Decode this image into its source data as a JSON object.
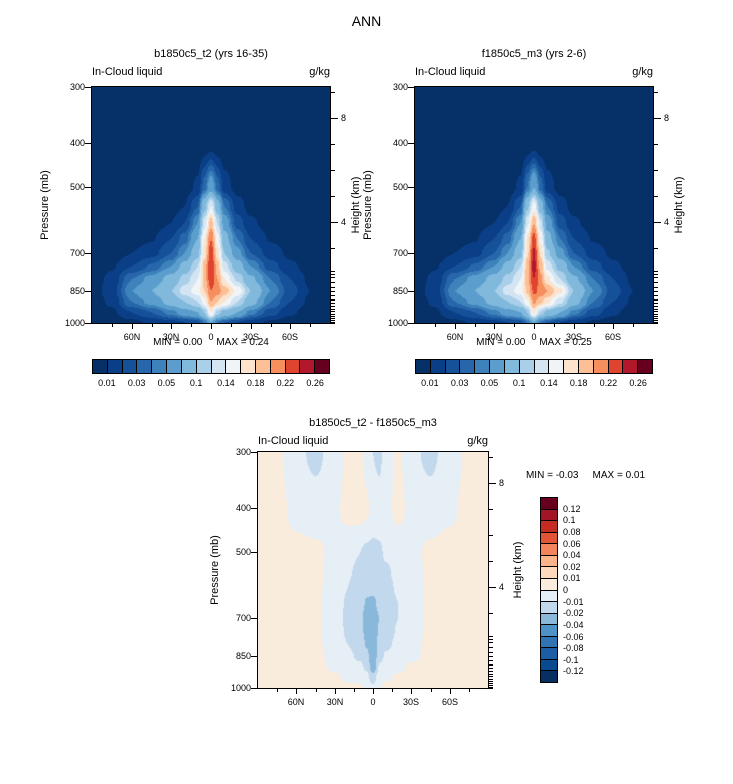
{
  "figure": {
    "title": "ANN",
    "season": "ANN"
  },
  "axes": {
    "pressure_label": "Pressure (mb)",
    "height_label": "Height (km)",
    "pressure_ticks": [
      300,
      400,
      500,
      700,
      850,
      1000
    ],
    "height_major_ticks": [
      {
        "km": "8",
        "mb": 351
      },
      {
        "km": "4",
        "mb": 597
      }
    ],
    "height_minor_ticks_mb": [
      888,
      778,
      681,
      523,
      458,
      401,
      307
    ],
    "model_level_ticks_mb": [
      1000,
      993,
      985,
      976,
      966,
      955,
      943,
      930,
      916,
      901,
      885,
      868,
      850,
      831,
      811,
      790,
      768
    ],
    "lat_major_ticks": [
      {
        "label": "60N",
        "lat": 60
      },
      {
        "label": "30N",
        "lat": 30
      },
      {
        "label": "0",
        "lat": 0
      },
      {
        "label": "30S",
        "lat": -30
      },
      {
        "label": "60S",
        "lat": -60
      }
    ],
    "lat_minor_ticks": [
      75,
      45,
      15,
      -15,
      -45,
      -75
    ]
  },
  "chart_data": [
    {
      "type": "filled-contour",
      "title": "b1850c5_t2 (yrs 16-35)",
      "field": "In-Cloud liquid",
      "units": "g/kg",
      "min_label": "MIN =  0.00",
      "max_label": "MAX =  0.24",
      "x_lat": [
        90,
        75,
        60,
        45,
        30,
        20,
        10,
        5,
        0,
        -5,
        -10,
        -20,
        -30,
        -45,
        -60,
        -75,
        -90
      ],
      "y_pressure_mb": [
        300,
        400,
        500,
        550,
        600,
        650,
        700,
        750,
        800,
        850,
        900,
        950,
        1000
      ],
      "values": [
        [
          0,
          0,
          0,
          0,
          0,
          0,
          0,
          0,
          0,
          0,
          0,
          0,
          0,
          0,
          0,
          0,
          0
        ],
        [
          0,
          0,
          0,
          0,
          0,
          0,
          0.002,
          0.004,
          0.006,
          0.004,
          0.002,
          0,
          0,
          0,
          0,
          0,
          0
        ],
        [
          0,
          0,
          0,
          0.002,
          0.003,
          0.005,
          0.012,
          0.035,
          0.06,
          0.035,
          0.015,
          0.006,
          0.003,
          0.002,
          0,
          0,
          0
        ],
        [
          0,
          0,
          0.002,
          0.003,
          0.005,
          0.01,
          0.03,
          0.09,
          0.14,
          0.08,
          0.04,
          0.015,
          0.006,
          0.003,
          0.002,
          0,
          0
        ],
        [
          0,
          0.002,
          0.003,
          0.005,
          0.01,
          0.02,
          0.05,
          0.13,
          0.19,
          0.12,
          0.06,
          0.025,
          0.012,
          0.005,
          0.003,
          0.002,
          0
        ],
        [
          0.002,
          0.003,
          0.005,
          0.009,
          0.02,
          0.035,
          0.07,
          0.16,
          0.22,
          0.15,
          0.08,
          0.04,
          0.02,
          0.009,
          0.005,
          0.003,
          0.002
        ],
        [
          0.003,
          0.005,
          0.01,
          0.016,
          0.03,
          0.05,
          0.09,
          0.17,
          0.235,
          0.17,
          0.1,
          0.055,
          0.03,
          0.015,
          0.008,
          0.004,
          0.002
        ],
        [
          0.004,
          0.009,
          0.02,
          0.032,
          0.05,
          0.08,
          0.12,
          0.19,
          0.24,
          0.19,
          0.13,
          0.085,
          0.05,
          0.025,
          0.012,
          0.006,
          0.003
        ],
        [
          0.005,
          0.013,
          0.04,
          0.055,
          0.08,
          0.11,
          0.14,
          0.19,
          0.235,
          0.2,
          0.16,
          0.115,
          0.075,
          0.04,
          0.02,
          0.008,
          0.004
        ],
        [
          0.006,
          0.015,
          0.05,
          0.07,
          0.1,
          0.13,
          0.15,
          0.18,
          0.22,
          0.21,
          0.19,
          0.155,
          0.1,
          0.05,
          0.025,
          0.01,
          0.005
        ],
        [
          0.005,
          0.012,
          0.04,
          0.055,
          0.08,
          0.1,
          0.12,
          0.15,
          0.2,
          0.18,
          0.16,
          0.12,
          0.08,
          0.04,
          0.02,
          0.008,
          0.004
        ],
        [
          0.003,
          0.008,
          0.02,
          0.03,
          0.045,
          0.06,
          0.07,
          0.1,
          0.16,
          0.11,
          0.09,
          0.07,
          0.045,
          0.025,
          0.012,
          0.005,
          0.002
        ],
        [
          0.002,
          0.004,
          0.007,
          0.012,
          0.016,
          0.02,
          0.025,
          0.04,
          0.07,
          0.04,
          0.03,
          0.02,
          0.014,
          0.008,
          0.004,
          0.002,
          0.001
        ]
      ],
      "levels": [
        0.01,
        0.02,
        0.03,
        0.04,
        0.05,
        0.07,
        0.1,
        0.12,
        0.14,
        0.16,
        0.18,
        0.2,
        0.22,
        0.24,
        0.26
      ],
      "colors": [
        "#063168",
        "#0a3f88",
        "#155199",
        "#2766aa",
        "#3d82bb",
        "#5b9ecd",
        "#81b9dc",
        "#aacfe9",
        "#d3e4f2",
        "#f0f4f6",
        "#fbe3cd",
        "#fcbf96",
        "#f78e5e",
        "#e04430",
        "#b2182b",
        "#67001f"
      ],
      "colorbar": {
        "orientation": "horizontal",
        "labels": [
          "0.01",
          "0.03",
          "0.05",
          "0.1",
          "0.14",
          "0.18",
          "0.22",
          "0.26"
        ],
        "boundaries": [
          1,
          3,
          5,
          7,
          9,
          11,
          13,
          15
        ]
      }
    },
    {
      "type": "filled-contour",
      "title": "f1850c5_m3 (yrs 2-6)",
      "field": "In-Cloud liquid",
      "units": "g/kg",
      "min_label": "MIN =  0.00",
      "max_label": "MAX =  0.25",
      "x_lat": [
        90,
        75,
        60,
        45,
        30,
        20,
        10,
        5,
        0,
        -5,
        -10,
        -20,
        -30,
        -45,
        -60,
        -75,
        -90
      ],
      "y_pressure_mb": [
        300,
        400,
        500,
        550,
        600,
        650,
        700,
        750,
        800,
        850,
        900,
        950,
        1000
      ],
      "values": [
        [
          0,
          0,
          0,
          0,
          0,
          0,
          0,
          0,
          0,
          0,
          0,
          0,
          0,
          0,
          0,
          0,
          0
        ],
        [
          0,
          0,
          0,
          0,
          0,
          0,
          0.002,
          0.004,
          0.006,
          0.004,
          0.002,
          0,
          0,
          0,
          0,
          0,
          0
        ],
        [
          0,
          0,
          0,
          0.002,
          0.003,
          0.005,
          0.012,
          0.04,
          0.07,
          0.035,
          0.015,
          0.006,
          0.003,
          0.002,
          0,
          0,
          0
        ],
        [
          0,
          0,
          0.002,
          0.003,
          0.005,
          0.01,
          0.03,
          0.095,
          0.15,
          0.085,
          0.04,
          0.015,
          0.006,
          0.003,
          0.002,
          0,
          0
        ],
        [
          0,
          0.002,
          0.003,
          0.005,
          0.01,
          0.02,
          0.05,
          0.135,
          0.2,
          0.125,
          0.06,
          0.025,
          0.012,
          0.005,
          0.003,
          0.002,
          0
        ],
        [
          0.002,
          0.003,
          0.005,
          0.009,
          0.02,
          0.035,
          0.07,
          0.165,
          0.23,
          0.155,
          0.08,
          0.04,
          0.02,
          0.009,
          0.005,
          0.003,
          0.002
        ],
        [
          0.003,
          0.005,
          0.01,
          0.016,
          0.03,
          0.05,
          0.09,
          0.175,
          0.245,
          0.175,
          0.105,
          0.055,
          0.03,
          0.015,
          0.008,
          0.004,
          0.002
        ],
        [
          0.004,
          0.009,
          0.02,
          0.032,
          0.05,
          0.08,
          0.12,
          0.195,
          0.25,
          0.195,
          0.135,
          0.09,
          0.05,
          0.025,
          0.012,
          0.006,
          0.003
        ],
        [
          0.005,
          0.013,
          0.04,
          0.055,
          0.08,
          0.11,
          0.14,
          0.195,
          0.24,
          0.205,
          0.165,
          0.12,
          0.075,
          0.04,
          0.02,
          0.008,
          0.004
        ],
        [
          0.006,
          0.015,
          0.05,
          0.07,
          0.1,
          0.13,
          0.15,
          0.185,
          0.225,
          0.215,
          0.2,
          0.165,
          0.1,
          0.05,
          0.025,
          0.01,
          0.005
        ],
        [
          0.005,
          0.012,
          0.04,
          0.055,
          0.08,
          0.1,
          0.12,
          0.155,
          0.205,
          0.185,
          0.165,
          0.125,
          0.08,
          0.04,
          0.02,
          0.008,
          0.004
        ],
        [
          0.003,
          0.008,
          0.02,
          0.03,
          0.045,
          0.06,
          0.07,
          0.1,
          0.165,
          0.115,
          0.09,
          0.07,
          0.045,
          0.025,
          0.012,
          0.005,
          0.002
        ],
        [
          0.002,
          0.004,
          0.007,
          0.012,
          0.016,
          0.02,
          0.025,
          0.04,
          0.07,
          0.04,
          0.03,
          0.02,
          0.014,
          0.008,
          0.004,
          0.002,
          0.001
        ]
      ],
      "levels": [
        0.01,
        0.02,
        0.03,
        0.04,
        0.05,
        0.07,
        0.1,
        0.12,
        0.14,
        0.16,
        0.18,
        0.2,
        0.22,
        0.24,
        0.26
      ],
      "colors": [
        "#063168",
        "#0a3f88",
        "#155199",
        "#2766aa",
        "#3d82bb",
        "#5b9ecd",
        "#81b9dc",
        "#aacfe9",
        "#d3e4f2",
        "#f0f4f6",
        "#fbe3cd",
        "#fcbf96",
        "#f78e5e",
        "#e04430",
        "#b2182b",
        "#67001f"
      ],
      "colorbar": {
        "orientation": "horizontal",
        "labels": [
          "0.01",
          "0.03",
          "0.05",
          "0.1",
          "0.14",
          "0.18",
          "0.22",
          "0.26"
        ],
        "boundaries": [
          1,
          3,
          5,
          7,
          9,
          11,
          13,
          15
        ]
      }
    },
    {
      "type": "filled-contour",
      "title": "b1850c5_t2 - f1850c5_m3",
      "field": "In-Cloud liquid",
      "units": "g/kg",
      "min_label": "MIN = -0.03",
      "max_label": "MAX =  0.01",
      "x_lat": [
        90,
        75,
        60,
        45,
        30,
        20,
        10,
        5,
        0,
        -5,
        -10,
        -20,
        -30,
        -45,
        -60,
        -75,
        -90
      ],
      "y_pressure_mb": [
        300,
        400,
        500,
        550,
        600,
        650,
        700,
        750,
        800,
        850,
        900,
        950,
        1000
      ],
      "values": [
        [
          0.003,
          0.002,
          -0.008,
          -0.012,
          -0.006,
          0.002,
          0.003,
          -0.004,
          -0.01,
          -0.012,
          -0.006,
          0.002,
          -0.008,
          -0.012,
          -0.006,
          0.002,
          0.003
        ],
        [
          0.004,
          0.003,
          -0.003,
          -0.006,
          -0.002,
          0.003,
          0.004,
          0.002,
          -0.005,
          -0.006,
          -0.003,
          0.003,
          -0.003,
          -0.006,
          -0.002,
          0.003,
          0.004
        ],
        [
          0.004,
          0.004,
          0.003,
          0.002,
          -0.003,
          -0.007,
          -0.01,
          -0.012,
          -0.012,
          -0.011,
          -0.009,
          -0.007,
          -0.003,
          0.002,
          0.004,
          0.004,
          0.004
        ],
        [
          0.004,
          0.004,
          0.003,
          0.002,
          -0.004,
          -0.009,
          -0.012,
          -0.014,
          -0.015,
          -0.013,
          -0.011,
          -0.008,
          -0.004,
          0.002,
          0.004,
          0.004,
          0.004
        ],
        [
          0.004,
          0.004,
          0.003,
          0.002,
          -0.005,
          -0.01,
          -0.015,
          -0.018,
          -0.018,
          -0.016,
          -0.012,
          -0.009,
          -0.005,
          0.002,
          0.004,
          0.004,
          0.004
        ],
        [
          0.004,
          0.004,
          0.003,
          0.002,
          -0.006,
          -0.011,
          -0.017,
          -0.021,
          -0.022,
          -0.018,
          -0.014,
          -0.01,
          -0.006,
          0.002,
          0.004,
          0.004,
          0.004
        ],
        [
          0.004,
          0.004,
          0.003,
          0.002,
          -0.006,
          -0.012,
          -0.018,
          -0.024,
          -0.025,
          -0.02,
          -0.015,
          -0.01,
          -0.006,
          0.002,
          0.004,
          0.004,
          0.004
        ],
        [
          0.004,
          0.004,
          0.003,
          0.002,
          -0.006,
          -0.011,
          -0.017,
          -0.023,
          -0.026,
          -0.019,
          -0.014,
          -0.009,
          -0.005,
          0.002,
          0.004,
          0.004,
          0.004
        ],
        [
          0.004,
          0.004,
          0.003,
          0.002,
          -0.005,
          -0.01,
          -0.015,
          -0.021,
          -0.027,
          -0.017,
          -0.012,
          -0.008,
          -0.004,
          0.003,
          0.004,
          0.004,
          0.004
        ],
        [
          0.004,
          0.004,
          0.003,
          0.003,
          -0.004,
          -0.008,
          -0.012,
          -0.017,
          -0.03,
          -0.013,
          -0.009,
          -0.006,
          -0.003,
          0.003,
          0.005,
          0.004,
          0.004
        ],
        [
          0.004,
          0.004,
          0.004,
          0.003,
          -0.002,
          -0.005,
          -0.008,
          -0.012,
          -0.028,
          -0.009,
          -0.006,
          -0.003,
          0.002,
          0.004,
          0.005,
          0.004,
          0.004
        ],
        [
          0.003,
          0.004,
          0.004,
          0.003,
          0.002,
          -0.002,
          -0.004,
          -0.006,
          -0.016,
          -0.004,
          -0.002,
          0.002,
          0.003,
          0.005,
          0.005,
          0.004,
          0.003
        ],
        [
          0.003,
          0.003,
          0.004,
          0.004,
          0.003,
          0.002,
          0.002,
          -0.002,
          -0.007,
          -0.002,
          0.003,
          0.004,
          0.004,
          0.004,
          0.004,
          0.003,
          0.003
        ]
      ],
      "levels": [
        -0.12,
        -0.1,
        -0.08,
        -0.06,
        -0.04,
        -0.02,
        -0.01,
        0,
        0.01,
        0.02,
        0.04,
        0.06,
        0.08,
        0.1,
        0.12
      ],
      "colors": [
        "#053061",
        "#0a4a90",
        "#1c5ea6",
        "#3173b3",
        "#4f93c6",
        "#8ab8da",
        "#c2d8ec",
        "#e6eef6",
        "#faecdd",
        "#fcd9bb",
        "#fbb38a",
        "#f4845c",
        "#e35338",
        "#c62b23",
        "#a31425",
        "#67001f"
      ],
      "colorbar": {
        "orientation": "vertical",
        "labels": [
          "0.12",
          "0.1",
          "0.08",
          "0.06",
          "0.04",
          "0.02",
          "0.01",
          "0",
          "-0.01",
          "-0.02",
          "-0.04",
          "-0.06",
          "-0.08",
          "-0.1",
          "-0.12"
        ],
        "boundaries": [
          1,
          2,
          3,
          4,
          5,
          6,
          7,
          8,
          9,
          10,
          11,
          12,
          13,
          14,
          15
        ]
      }
    }
  ]
}
